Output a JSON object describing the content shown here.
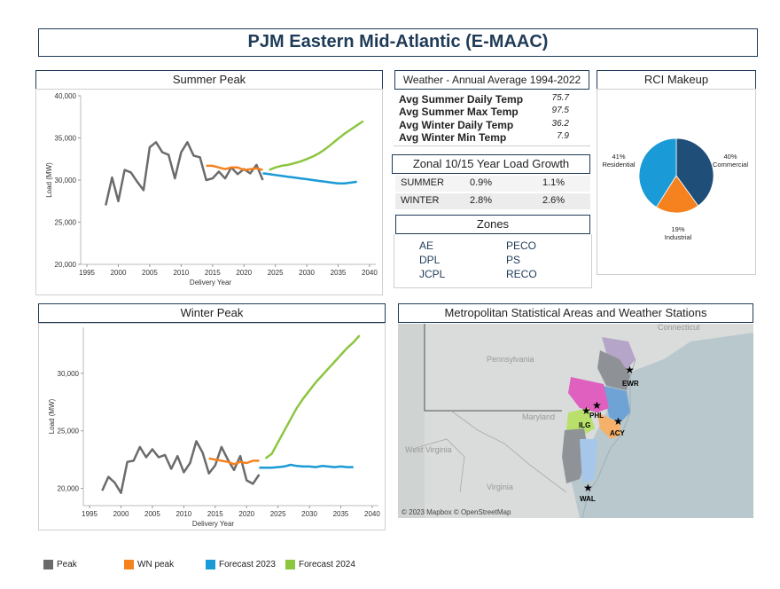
{
  "header": {
    "title": "PJM Eastern Mid-Atlantic (E-MAAC)"
  },
  "summer": {
    "title": "Summer Peak"
  },
  "winter": {
    "title": "Winter Peak"
  },
  "weather": {
    "title": "Weather - Annual Average 1994-2022",
    "rows": [
      {
        "label": "Avg Summer Daily Temp",
        "value": "75.7"
      },
      {
        "label": "Avg Summer Max Temp",
        "value": "97.5"
      },
      {
        "label": "Avg Winter Daily Temp",
        "value": "36.2"
      },
      {
        "label": "Avg Winter Min Temp",
        "value": "7.9"
      }
    ]
  },
  "growth": {
    "title": "Zonal 10/15 Year Load Growth",
    "rows": [
      {
        "season": "SUMMER",
        "ten": "0.9%",
        "fifteen": "1.1%"
      },
      {
        "season": "WINTER",
        "ten": "2.8%",
        "fifteen": "2.6%"
      }
    ]
  },
  "zones": {
    "title": "Zones",
    "left": [
      "AE",
      "DPL",
      "JCPL"
    ],
    "right": [
      "PECO",
      "PS",
      "RECO"
    ]
  },
  "rci": {
    "title": "RCI Makeup"
  },
  "map": {
    "title": "Metropolitan Statistical Areas and Weather Stations",
    "states": [
      "Pennsylvania",
      "Maryland",
      "West Virginia",
      "Virginia",
      "Connecticut"
    ],
    "stations": [
      "EWR",
      "PHL",
      "ILG",
      "ACY",
      "WAL"
    ],
    "attribution": "© 2023 Mapbox © OpenStreetMap"
  },
  "legend": [
    {
      "name": "Peak",
      "color": "#6b6b6b"
    },
    {
      "name": "WN peak",
      "color": "#f5821f"
    },
    {
      "name": "Forecast 2023",
      "color": "#1a9ad6"
    },
    {
      "name": "Forecast 2024",
      "color": "#8cc63f"
    }
  ],
  "colors": {
    "peak": "#6b6b6b",
    "wn": "#f5821f",
    "f2023": "#1a9ad6",
    "f2024": "#8cc63f",
    "navy": "#1f3b57"
  },
  "chart_data": [
    {
      "id": "summer",
      "type": "line",
      "title": "Summer Peak",
      "xlabel": "Delivery Year",
      "ylabel": "Load (MW)",
      "xlim": [
        1994,
        2041
      ],
      "ylim": [
        20000,
        40000
      ],
      "xticks": [
        1995,
        2000,
        2005,
        2010,
        2015,
        2020,
        2025,
        2030,
        2035,
        2040
      ],
      "yticks": [
        20000,
        25000,
        30000,
        35000,
        40000
      ],
      "ytick_labels": [
        "20,000",
        "25,000",
        "30,000",
        "35,000",
        "40,000"
      ],
      "series": [
        {
          "name": "Peak",
          "color": "#6b6b6b",
          "x": [
            1998,
            1999,
            2000,
            2001,
            2002,
            2003,
            2004,
            2005,
            2006,
            2007,
            2008,
            2009,
            2010,
            2011,
            2012,
            2013,
            2014,
            2015,
            2016,
            2017,
            2018,
            2019,
            2020,
            2021,
            2022,
            2023
          ],
          "y": [
            27000,
            30300,
            27500,
            31200,
            30900,
            29800,
            28800,
            33900,
            34500,
            33300,
            33000,
            30200,
            33300,
            34500,
            32900,
            32700,
            30000,
            30200,
            31000,
            30200,
            31500,
            30700,
            31300,
            30800,
            31800,
            30000
          ]
        },
        {
          "name": "WN peak",
          "color": "#f5821f",
          "x": [
            2014,
            2015,
            2016,
            2017,
            2018,
            2019,
            2020,
            2021,
            2022,
            2023
          ],
          "y": [
            31700,
            31700,
            31500,
            31300,
            31500,
            31500,
            31200,
            31300,
            31400,
            31200
          ]
        },
        {
          "name": "Forecast 2023",
          "color": "#1a9ad6",
          "x": [
            2023,
            2024,
            2025,
            2026,
            2027,
            2028,
            2029,
            2030,
            2031,
            2032,
            2033,
            2034,
            2035,
            2036,
            2037,
            2038
          ],
          "y": [
            30800,
            30700,
            30600,
            30500,
            30400,
            30300,
            30200,
            30100,
            30000,
            29900,
            29800,
            29700,
            29600,
            29600,
            29700,
            29800
          ]
        },
        {
          "name": "Forecast 2024",
          "color": "#8cc63f",
          "x": [
            2024,
            2025,
            2026,
            2027,
            2028,
            2029,
            2030,
            2031,
            2032,
            2033,
            2034,
            2035,
            2036,
            2037,
            2038,
            2039
          ],
          "y": [
            31200,
            31500,
            31700,
            31800,
            32000,
            32200,
            32500,
            32800,
            33200,
            33700,
            34300,
            34900,
            35500,
            36000,
            36500,
            37000
          ]
        }
      ]
    },
    {
      "id": "winter",
      "type": "line",
      "title": "Winter Peak",
      "xlabel": "Delivery Year",
      "ylabel": "Load (MW)",
      "xlim": [
        1994,
        2041
      ],
      "ylim": [
        18500,
        34000
      ],
      "xticks": [
        1995,
        2000,
        2005,
        2010,
        2015,
        2020,
        2025,
        2030,
        2035,
        2040
      ],
      "yticks": [
        20000,
        25000,
        30000
      ],
      "ytick_labels": [
        "20,000",
        "25,000",
        "30,000"
      ],
      "series": [
        {
          "name": "Peak",
          "color": "#6b6b6b",
          "x": [
            1997,
            1998,
            1999,
            2000,
            2001,
            2002,
            2003,
            2004,
            2005,
            2006,
            2007,
            2008,
            2009,
            2010,
            2011,
            2012,
            2013,
            2014,
            2015,
            2016,
            2017,
            2018,
            2019,
            2020,
            2021,
            2022
          ],
          "y": [
            19800,
            21000,
            20500,
            19600,
            22300,
            22400,
            23600,
            22700,
            23400,
            22700,
            22900,
            21700,
            22800,
            21400,
            22200,
            24100,
            23100,
            21300,
            22000,
            23600,
            22500,
            21600,
            22800,
            20700,
            20400,
            21200
          ]
        },
        {
          "name": "WN peak",
          "color": "#f5821f",
          "x": [
            2014,
            2015,
            2016,
            2017,
            2018,
            2019,
            2020,
            2021,
            2022
          ],
          "y": [
            22600,
            22500,
            22400,
            22300,
            22100,
            22300,
            22200,
            22400,
            22400
          ]
        },
        {
          "name": "Forecast 2023",
          "color": "#1a9ad6",
          "x": [
            2022,
            2023,
            2024,
            2025,
            2026,
            2027,
            2028,
            2029,
            2030,
            2031,
            2032,
            2033,
            2034,
            2035,
            2036,
            2037
          ],
          "y": [
            21800,
            21800,
            21800,
            21850,
            21900,
            22050,
            21950,
            21900,
            21900,
            21850,
            21950,
            21900,
            21850,
            21900,
            21850,
            21850
          ]
        },
        {
          "name": "Forecast 2024",
          "color": "#8cc63f",
          "x": [
            2023,
            2024,
            2025,
            2026,
            2027,
            2028,
            2029,
            2030,
            2031,
            2032,
            2033,
            2034,
            2035,
            2036,
            2037,
            2038
          ],
          "y": [
            22600,
            23000,
            24000,
            25000,
            26000,
            27000,
            27800,
            28500,
            29200,
            29800,
            30400,
            31000,
            31600,
            32200,
            32700,
            33300
          ]
        }
      ]
    },
    {
      "id": "rci",
      "type": "pie",
      "title": "RCI Makeup",
      "slices": [
        {
          "label": "Commercial",
          "pct": "40%",
          "value": 40,
          "color": "#1f4e79"
        },
        {
          "label": "Industrial",
          "pct": "19%",
          "value": 19,
          "color": "#f5821f"
        },
        {
          "label": "Residential",
          "pct": "41%",
          "value": 41,
          "color": "#1a9ad6"
        }
      ]
    }
  ]
}
